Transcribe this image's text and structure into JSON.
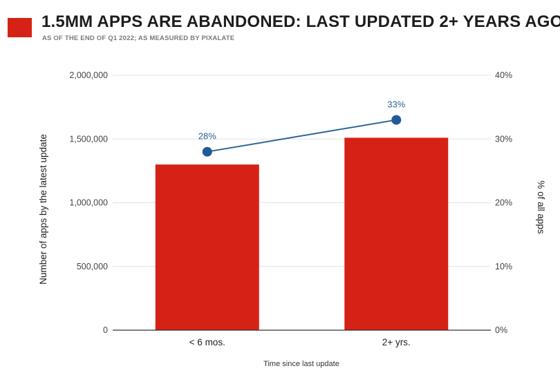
{
  "header": {
    "title": "1.5MM APPS ARE ABANDONED: LAST UPDATED 2+ YEARS AGO",
    "subtitle": "AS OF THE END OF Q1 2022; AS MEASURED BY PIXALATE"
  },
  "colors": {
    "bar": "#d62216",
    "line": "#2a6496",
    "marker": "#1f5a9a",
    "grid": "#e2e2e2",
    "swatch": "#d62216"
  },
  "chart_data": {
    "type": "bar",
    "categories": [
      "< 6 mos.",
      "2+ yrs."
    ],
    "series": [
      {
        "values": [
          1300000,
          1510000
        ],
        "axis": "left",
        "kind": "bar"
      },
      {
        "values": [
          28,
          33
        ],
        "value_labels": [
          "28%",
          "33%"
        ],
        "axis": "right",
        "kind": "line"
      }
    ],
    "xlabel": "Time since last update",
    "ylabel": "Number of apps by the latest update",
    "y2label": "% of all apps",
    "ylim": [
      0,
      2000000
    ],
    "y2lim": [
      0,
      40
    ],
    "yticks": [
      "0",
      "500,000",
      "1,000,000",
      "1,500,000",
      "2,000,000"
    ],
    "y2ticks": [
      "0%",
      "10%",
      "20%",
      "30%",
      "40%"
    ],
    "grid": true
  }
}
